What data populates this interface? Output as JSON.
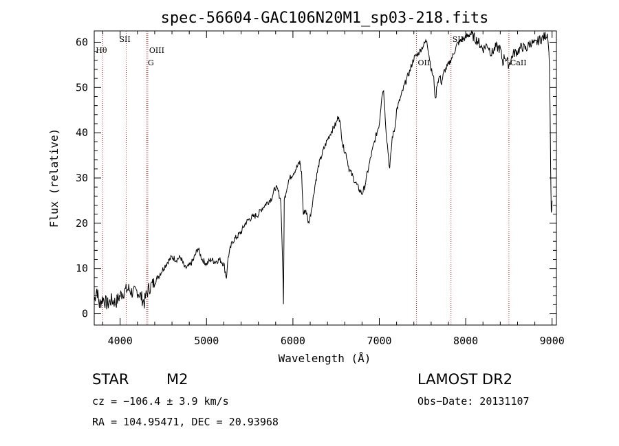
{
  "chart_data": {
    "type": "line",
    "title": "spec-56604-GAC106N20M1_sp03-218.fits",
    "xlabel": "Wavelength (Å)",
    "ylabel": "Flux (relative)",
    "xlim": [
      3700,
      9050
    ],
    "ylim": [
      -2.5,
      62.5
    ],
    "xticks": [
      4000,
      5000,
      6000,
      7000,
      8000,
      9000
    ],
    "yticks": [
      0,
      10,
      20,
      30,
      40,
      50,
      60
    ],
    "grid": false,
    "series": [
      {
        "x": [
          3700,
          3730,
          3760,
          3800,
          3850,
          3900,
          3950,
          4000,
          4050,
          4100,
          4150,
          4200,
          4250,
          4280,
          4300,
          4330,
          4350,
          4400,
          4450,
          4500,
          4550,
          4600,
          4650,
          4700,
          4750,
          4800,
          4850,
          4900,
          4950,
          5000,
          5050,
          5100,
          5150,
          5200,
          5230,
          5250,
          5300,
          5350,
          5400,
          5450,
          5500,
          5550,
          5600,
          5650,
          5700,
          5750,
          5800,
          5830,
          5860,
          5880,
          5890,
          5900,
          5920,
          5950,
          6000,
          6050,
          6080,
          6100,
          6120,
          6150,
          6180,
          6200,
          6230,
          6260,
          6300,
          6350,
          6400,
          6450,
          6500,
          6530,
          6550,
          6580,
          6620,
          6650,
          6700,
          6750,
          6800,
          6830,
          6850,
          6900,
          6950,
          7000,
          7030,
          7050,
          7080,
          7100,
          7120,
          7150,
          7180,
          7200,
          7250,
          7300,
          7350,
          7400,
          7450,
          7500,
          7550,
          7600,
          7630,
          7650,
          7670,
          7700,
          7720,
          7750,
          7800,
          7850,
          7900,
          7950,
          8000,
          8050,
          8100,
          8150,
          8200,
          8250,
          8300,
          8350,
          8400,
          8430,
          8450,
          8500,
          8550,
          8600,
          8650,
          8700,
          8750,
          8800,
          8850,
          8900,
          8950,
          8970,
          8990,
          9000
        ],
        "y": [
          3.0,
          5.5,
          2.0,
          3.5,
          2.0,
          3.0,
          2.5,
          4.0,
          5.0,
          5.5,
          4.5,
          5.0,
          3.5,
          2.5,
          4.0,
          5.5,
          6.0,
          7.0,
          8.5,
          10.0,
          11.5,
          12.5,
          12.0,
          12.5,
          10.0,
          10.5,
          12.0,
          14.5,
          12.0,
          11.0,
          12.0,
          11.5,
          12.0,
          11.0,
          8.0,
          12.5,
          16.0,
          17.0,
          18.0,
          20.0,
          21.0,
          21.5,
          22.0,
          23.5,
          24.5,
          25.5,
          28.0,
          27.0,
          25.0,
          12.0,
          2.0,
          25.0,
          27.0,
          29.5,
          31.0,
          32.5,
          33.5,
          31.0,
          22.0,
          23.0,
          20.0,
          21.5,
          25.0,
          29.0,
          33.0,
          36.0,
          38.5,
          40.5,
          42.0,
          44.0,
          41.5,
          37.0,
          35.0,
          32.0,
          30.0,
          28.0,
          26.5,
          28.0,
          30.0,
          34.5,
          38.5,
          42.0,
          48.5,
          49.5,
          40.0,
          36.0,
          32.0,
          39.0,
          41.0,
          45.0,
          48.0,
          51.0,
          53.5,
          56.5,
          57.5,
          59.0,
          60.5,
          54.0,
          52.0,
          47.0,
          51.0,
          52.5,
          51.0,
          53.5,
          55.0,
          57.0,
          59.5,
          60.5,
          61.0,
          62.0,
          61.0,
          60.0,
          58.5,
          59.5,
          57.5,
          59.0,
          58.5,
          55.5,
          57.0,
          55.0,
          57.5,
          58.0,
          59.0,
          58.5,
          60.0,
          59.5,
          60.5,
          61.0,
          62.0,
          55.0,
          22.0,
          25.0
        ]
      }
    ],
    "line_markers": [
      {
        "label": "Hθ",
        "x": 3798
      },
      {
        "label": "SII",
        "x": 4070
      },
      {
        "label": "OIII",
        "x": 4320
      },
      {
        "label": "G",
        "x": 4305
      },
      {
        "label": "OII",
        "x": 7430
      },
      {
        "label": "SII",
        "x": 7830
      },
      {
        "label": "CaII",
        "x": 8500
      }
    ]
  },
  "info": {
    "object_class": "STAR",
    "subclass": "M2",
    "survey": "LAMOST DR2",
    "cz": "cz = −106.4 ± 3.9 km/s",
    "obs_date": "Obs−Date: 20131107",
    "coords": "RA = 104.95471, DEC =  20.93968"
  }
}
